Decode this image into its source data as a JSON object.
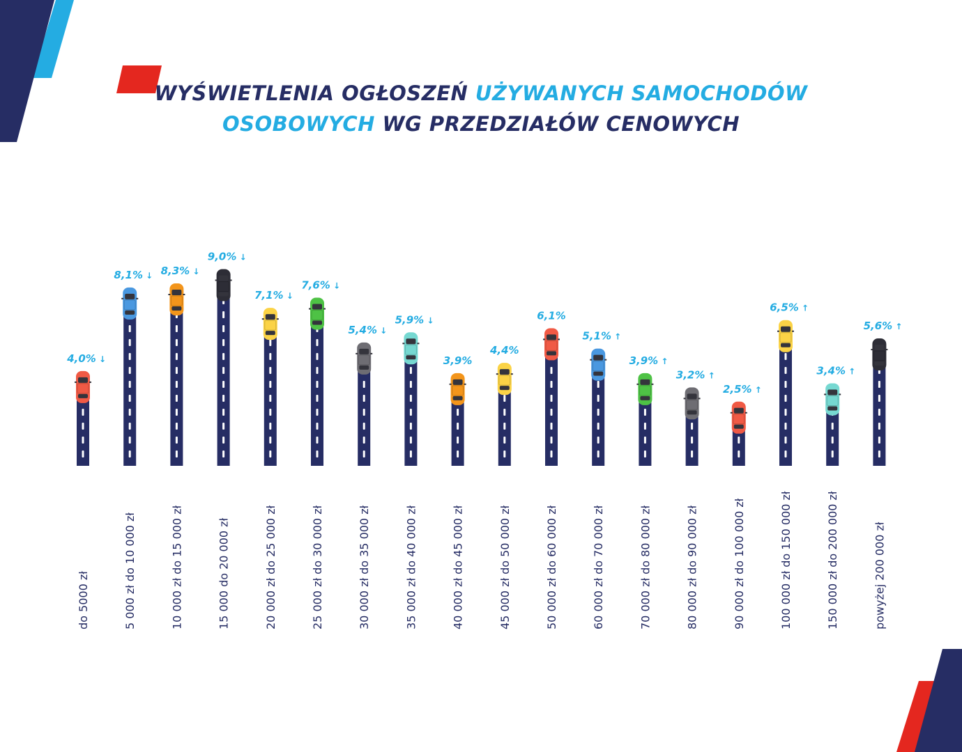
{
  "header": {
    "title_part1": "WYŚWIETLENIA OGŁOSZEŃ ",
    "title_part2": "UŻYWANYCH SAMOCHODÓW",
    "title_part3": "OSOBOWYCH",
    "title_part4": " WG PRZEDZIAŁÓW CENOWYCH"
  },
  "colors": {
    "navy": "#262d64",
    "sky": "#24ace2",
    "red": "#e4271f"
  },
  "chart_data": {
    "type": "bar",
    "title": "WYŚWIETLENIA OGŁOSZEŃ UŻYWANYCH SAMOCHODÓW OSOBOWYCH WG PRZEDZIAŁÓW CENOWYCH",
    "categories": [
      "do 5000 zł",
      "5 000 zł do 10 000 zł",
      "10 000 zł do 15 000 zł",
      "15 000 do 20 000 zł",
      "20 000 zł do 25 000 zł",
      "25 000 zł do 30 000 zł",
      "30 000 zł do 35 000 zł",
      "35 000 zł do 40 000 zł",
      "40 000 zł do 45 000 zł",
      "45 000 zł do 50 000 zł",
      "50 000 zł do 60 000 zł",
      "60 000 zł do 70 000 zł",
      "70 000 zł do 80 000 zł",
      "80 000 zł do 90 000 zł",
      "90 000 zł do 100 000 zł",
      "100 000 zł do 150 000 zł",
      "150 000 zł do 200 000 zł",
      "powyżej 200 000 zł"
    ],
    "values": [
      4.0,
      8.1,
      8.3,
      9.0,
      7.1,
      7.6,
      5.4,
      5.9,
      3.9,
      4.4,
      6.1,
      5.1,
      3.9,
      3.2,
      2.5,
      6.5,
      3.4,
      5.6
    ],
    "labels": [
      "4,0%",
      "8,1%",
      "8,3%",
      "9,0%",
      "7,1%",
      "7,6%",
      "5,4%",
      "5,9%",
      "3,9%",
      "4,4%",
      "6,1%",
      "5,1%",
      "3,9%",
      "3,2%",
      "2,5%",
      "6,5%",
      "3,4%",
      "5,6%"
    ],
    "trend": [
      "down",
      "down",
      "down",
      "down",
      "down",
      "down",
      "down",
      "down",
      "none",
      "none",
      "none",
      "up",
      "up",
      "up",
      "up",
      "up",
      "up",
      "up"
    ],
    "trend_glyphs": {
      "down": "↓",
      "up": "↑",
      "none": ""
    },
    "car_colors": [
      "red",
      "blue",
      "orange",
      "black",
      "yellow",
      "green",
      "gray",
      "teal",
      "orange",
      "yellow",
      "red",
      "blue",
      "green",
      "gray",
      "red",
      "yellow",
      "teal",
      "black"
    ],
    "palette": {
      "red": "#f05a45",
      "blue": "#4a98e0",
      "orange": "#f3951b",
      "black": "#2d2d36",
      "yellow": "#fbd346",
      "green": "#4ec245",
      "gray": "#6e6d73",
      "teal": "#76d8d1"
    },
    "xlabel": "",
    "ylabel": "",
    "ylim": [
      0,
      10
    ],
    "grid": false,
    "legend": "none"
  }
}
